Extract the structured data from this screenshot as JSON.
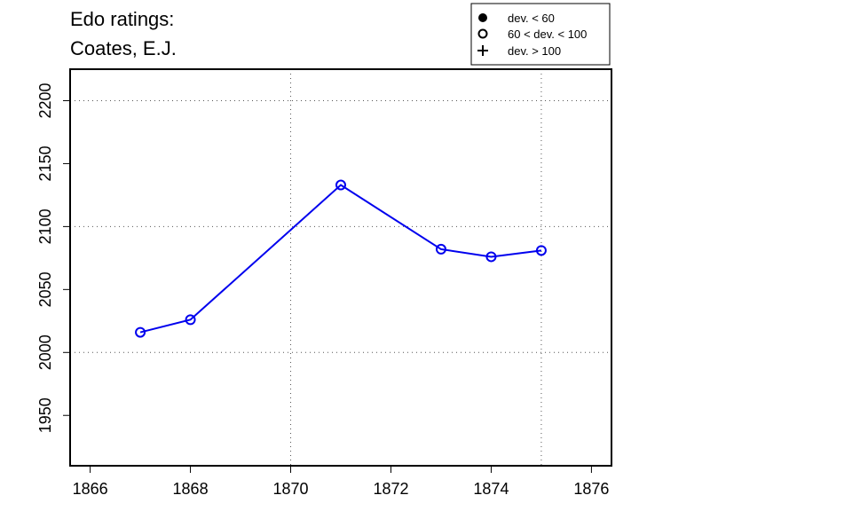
{
  "chart_data": {
    "type": "line",
    "title_lines": [
      "Edo ratings:",
      "Coates, E.J."
    ],
    "xlabel": "",
    "ylabel": "",
    "xlim": [
      1865.6,
      1876.4
    ],
    "ylim": [
      1910,
      2225
    ],
    "x_ticks": [
      1866,
      1868,
      1870,
      1872,
      1874,
      1876
    ],
    "y_ticks": [
      1950,
      2000,
      2050,
      2100,
      2150,
      2200
    ],
    "x_grid": [
      1870,
      1875
    ],
    "y_grid": [
      2000,
      2100,
      2200
    ],
    "series": [
      {
        "color": "#0000ee",
        "marker": "open-circle",
        "x": [
          1867,
          1868,
          1871,
          1873,
          1874,
          1875
        ],
        "y": [
          2016,
          2026,
          2133,
          2082,
          2076,
          2081
        ]
      }
    ],
    "legend": {
      "placement": "top-right",
      "entries": [
        {
          "label": "dev. < 60",
          "marker": "filled-circle"
        },
        {
          "label": "60 < dev. < 100",
          "marker": "open-circle"
        },
        {
          "label": "dev. > 100",
          "marker": "plus"
        }
      ]
    }
  }
}
